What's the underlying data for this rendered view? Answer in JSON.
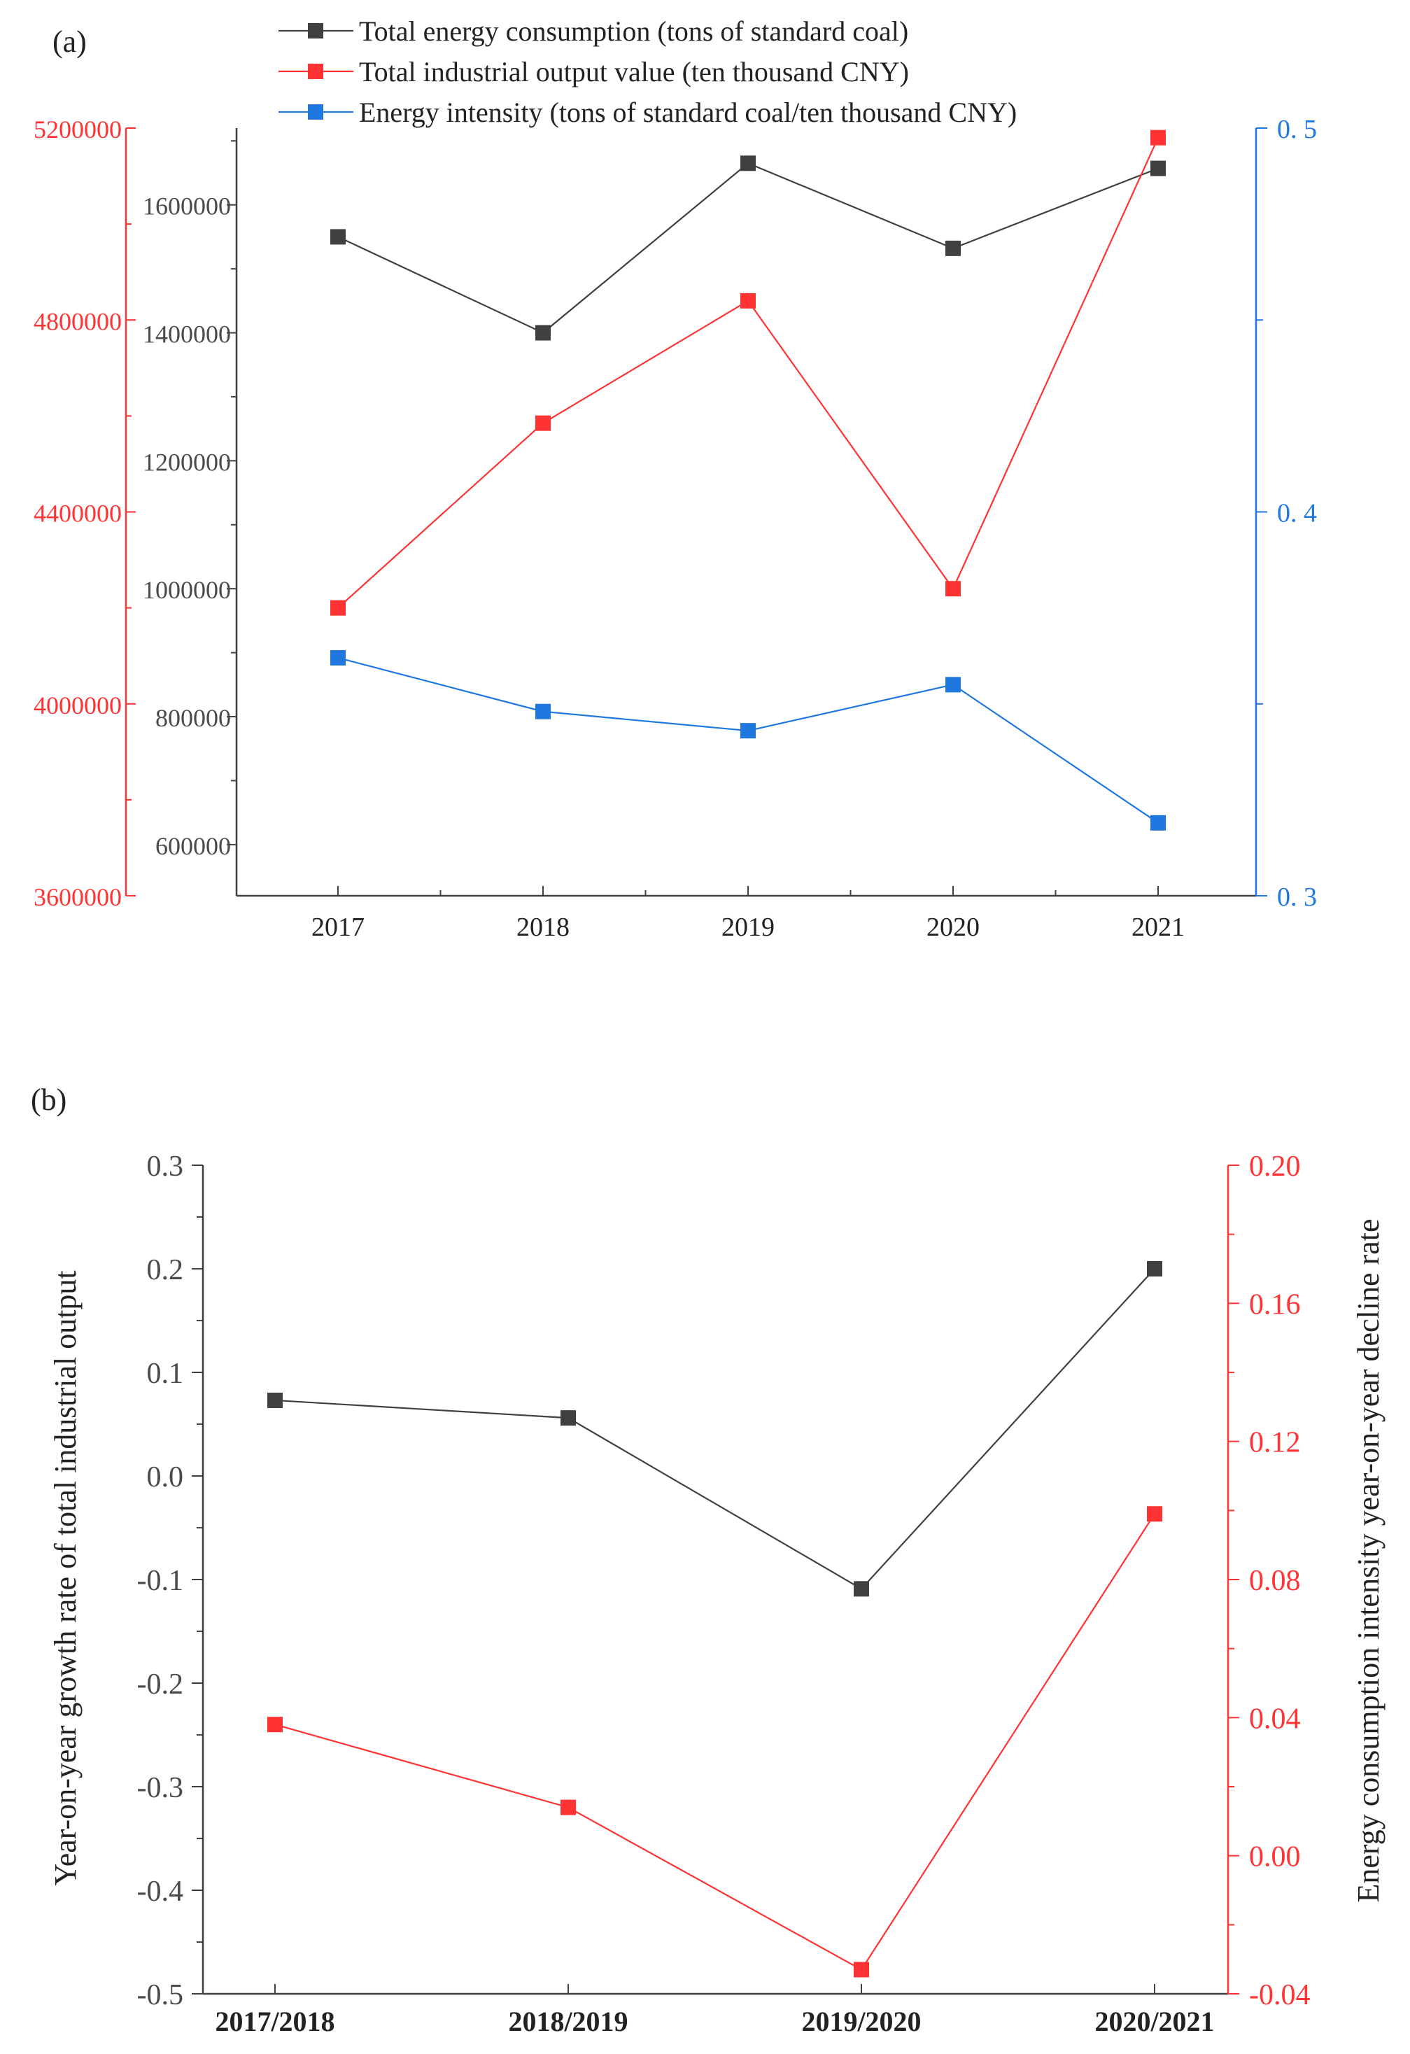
{
  "chart_data": [
    {
      "panel_label": "(a)",
      "type": "line",
      "categories": [
        "2017",
        "2018",
        "2019",
        "2020",
        "2021"
      ],
      "series": [
        {
          "name": "Total energy consumption (tons of standard coal)",
          "axis": "left-inner",
          "color": "#404040",
          "values": [
            1550000,
            1400000,
            1665000,
            1532000,
            1657000
          ]
        },
        {
          "name": "Total industrial output value (ten thousand CNY)",
          "axis": "left-outer",
          "color": "#ff3333",
          "values": [
            4200000,
            4585000,
            4840000,
            4240000,
            5180000
          ]
        },
        {
          "name": "Energy intensity (tons of standard coal/ten thousand CNY)",
          "axis": "right",
          "color": "#1f78e0",
          "values": [
            0.362,
            0.348,
            0.343,
            0.355,
            0.319
          ]
        }
      ],
      "axes": {
        "left_inner": {
          "ylim": [
            520000,
            1720000
          ],
          "ticks": [
            "600000",
            "800000",
            "1000000",
            "1200000",
            "1400000",
            "1600000"
          ],
          "color": "#404040"
        },
        "left_outer": {
          "ylim": [
            3600000,
            5200000
          ],
          "ticks": [
            "3600000",
            "4000000",
            "4400000",
            "4800000",
            "5200000"
          ],
          "color": "#ff3333"
        },
        "right": {
          "ylim": [
            0.3,
            0.5
          ],
          "ticks": [
            "0. 3",
            "0. 4",
            "0. 5"
          ],
          "color": "#1f78e0"
        }
      },
      "legend_position": "top-center"
    },
    {
      "panel_label": "(b)",
      "type": "line",
      "categories": [
        "2017/2018",
        "2018/2019",
        "2019/2020",
        "2020/2021"
      ],
      "series": [
        {
          "name": "Year-on-year growth rate of total industrial output",
          "axis": "left",
          "color": "#404040",
          "values": [
            0.073,
            0.056,
            -0.109,
            0.2
          ]
        },
        {
          "name": "Energy consumption intensity year-on-year decline rate",
          "axis": "right",
          "color": "#ff3333",
          "values": [
            0.038,
            0.014,
            -0.033,
            0.099
          ]
        }
      ],
      "ylabel": "Year-on-year growth rate of total industrial output",
      "ylabel_right": "Energy consumption intensity year-on-year decline rate",
      "axes": {
        "left": {
          "ylim": [
            -0.5,
            0.3
          ],
          "ticks": [
            "-0.5",
            "-0.4",
            "-0.3",
            "-0.2",
            "-0.1",
            "0.0",
            "0.1",
            "0.2",
            "0.3"
          ],
          "color": "#404040"
        },
        "right": {
          "ylim": [
            -0.04,
            0.2
          ],
          "ticks": [
            "-0.04",
            "0.00",
            "0.04",
            "0.08",
            "0.12",
            "0.16",
            "0.20"
          ],
          "color": "#ff3333"
        }
      }
    }
  ]
}
